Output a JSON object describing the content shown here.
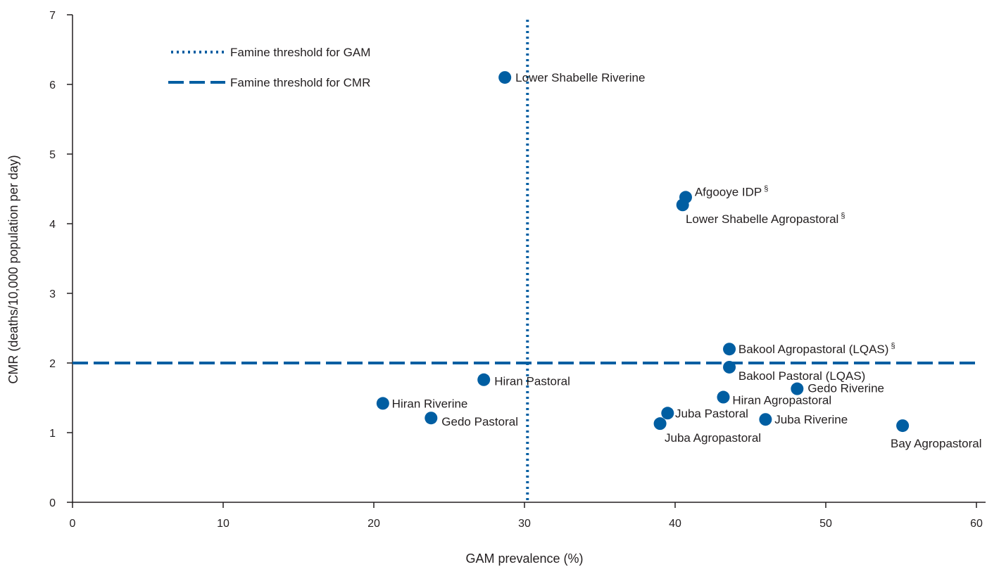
{
  "chart_data": {
    "type": "scatter",
    "xlabel": "GAM prevalence (%)",
    "ylabel": "CMR (deaths/10,000 population per day)",
    "xlim": [
      0,
      60
    ],
    "ylim": [
      0,
      7
    ],
    "x_ticks": [
      "0",
      "10",
      "20",
      "30",
      "40",
      "50",
      "60"
    ],
    "y_ticks": [
      "0",
      "1",
      "2",
      "3",
      "4",
      "5",
      "6",
      "7"
    ],
    "grid": false,
    "legend_position": "top-left",
    "color": "#005ea2",
    "thresholds": {
      "gam": {
        "label": "Famine threshold for GAM",
        "x": 30.2,
        "style": "dotted"
      },
      "cmr": {
        "label": "Famine threshold for CMR",
        "y": 2,
        "style": "dashed"
      }
    },
    "points": [
      {
        "name": "Lower Shabelle  Riverine",
        "sup": "",
        "x": 28.7,
        "y": 6.1,
        "lx": 0.7,
        "ly": 0
      },
      {
        "name": "Afgooye IDP",
        "sup": "§",
        "x": 40.7,
        "y": 4.38,
        "lx": 0.6,
        "ly": 0.08
      },
      {
        "name": "Lower Shabelle  Agropastoral",
        "sup": "§",
        "x": 40.5,
        "y": 4.27,
        "lx": 0.2,
        "ly": -0.2
      },
      {
        "name": "Bakool Agropastoral  (LQAS)",
        "sup": "§",
        "x": 43.6,
        "y": 2.2,
        "lx": 0.6,
        "ly": 0
      },
      {
        "name": "Bakool Pastoral (LQAS)",
        "sup": "",
        "x": 43.6,
        "y": 1.94,
        "lx": 0.6,
        "ly": -0.12
      },
      {
        "name": "Hiran Pastoral",
        "sup": "",
        "x": 27.3,
        "y": 1.76,
        "lx": 0.7,
        "ly": -0.02
      },
      {
        "name": "Gedo Riverine",
        "sup": "",
        "x": 48.1,
        "y": 1.63,
        "lx": 0.7,
        "ly": 0.01
      },
      {
        "name": "Hiran Agropastoral",
        "sup": "",
        "x": 43.2,
        "y": 1.51,
        "lx": 0.6,
        "ly": -0.04
      },
      {
        "name": "Hiran Riverine",
        "sup": "",
        "x": 20.6,
        "y": 1.42,
        "lx": 0.6,
        "ly": 0
      },
      {
        "name": "Juba Pastoral",
        "sup": "",
        "x": 39.5,
        "y": 1.28,
        "lx": 0.5,
        "ly": 0
      },
      {
        "name": "Gedo Pastoral",
        "sup": "",
        "x": 23.8,
        "y": 1.21,
        "lx": 0.7,
        "ly": -0.05
      },
      {
        "name": "Juba Riverine",
        "sup": "",
        "x": 46.0,
        "y": 1.19,
        "lx": 0.6,
        "ly": 0
      },
      {
        "name": "Juba Agropastoral",
        "sup": "",
        "x": 39.0,
        "y": 1.13,
        "lx": 0.3,
        "ly": -0.2
      },
      {
        "name": "Bay Agropastoral",
        "sup": "",
        "x": 55.1,
        "y": 1.1,
        "lx": -0.8,
        "ly": -0.25
      }
    ]
  }
}
